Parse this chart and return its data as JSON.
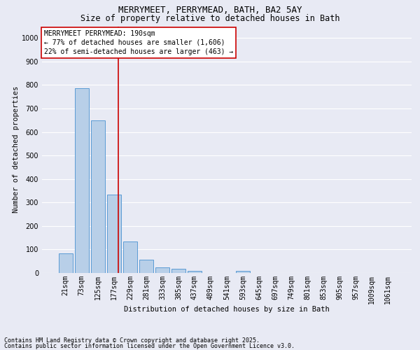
{
  "title": "MERRYMEET, PERRYMEAD, BATH, BA2 5AY",
  "subtitle": "Size of property relative to detached houses in Bath",
  "xlabel": "Distribution of detached houses by size in Bath",
  "ylabel": "Number of detached properties",
  "footnote1": "Contains HM Land Registry data © Crown copyright and database right 2025.",
  "footnote2": "Contains public sector information licensed under the Open Government Licence v3.0.",
  "annotation_title": "MERRYMEET PERRYMEAD: 190sqm",
  "annotation_line1": "← 77% of detached houses are smaller (1,606)",
  "annotation_line2": "22% of semi-detached houses are larger (463) →",
  "bar_color": "#b8cfe8",
  "bar_edge_color": "#5b9bd5",
  "vline_color": "#cc0000",
  "annotation_box_edgecolor": "#cc0000",
  "annotation_box_facecolor": "#ffffff",
  "background_color": "#e8eaf4",
  "plot_bg_color": "#e8eaf4",
  "grid_color": "#ffffff",
  "categories": [
    "21sqm",
    "73sqm",
    "125sqm",
    "177sqm",
    "229sqm",
    "281sqm",
    "333sqm",
    "385sqm",
    "437sqm",
    "489sqm",
    "541sqm",
    "593sqm",
    "645sqm",
    "697sqm",
    "749sqm",
    "801sqm",
    "853sqm",
    "905sqm",
    "957sqm",
    "1009sqm",
    "1061sqm"
  ],
  "values": [
    83,
    785,
    648,
    335,
    133,
    58,
    24,
    19,
    10,
    0,
    0,
    8,
    0,
    0,
    0,
    0,
    0,
    0,
    0,
    0,
    0
  ],
  "ylim": [
    0,
    1050
  ],
  "yticks": [
    0,
    100,
    200,
    300,
    400,
    500,
    600,
    700,
    800,
    900,
    1000
  ],
  "vline_x_index": 3.25,
  "title_fontsize": 9,
  "subtitle_fontsize": 8.5,
  "axis_label_fontsize": 7.5,
  "tick_fontsize": 7,
  "annotation_fontsize": 7,
  "footnote_fontsize": 6
}
